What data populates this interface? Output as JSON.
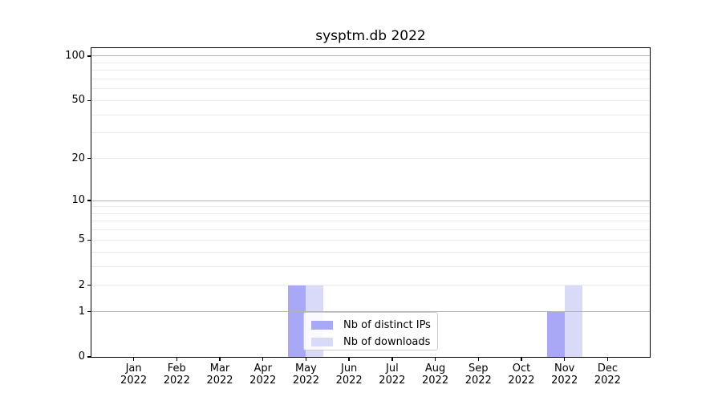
{
  "title": "sysptm.db 2022",
  "colors": {
    "series_distinct_ips": "#a8a8f6",
    "series_downloads": "#d9d9f8",
    "grid_major": "#b4b4b4",
    "grid_minor": "#ebebeb",
    "axis": "#000000",
    "legend_border": "#cccccc"
  },
  "chart_data": {
    "type": "bar",
    "title": "sysptm.db 2022",
    "xlabel": "",
    "ylabel": "",
    "yscale": "log1p",
    "ylim": [
      0,
      113
    ],
    "grid": true,
    "legend_position": "lower center",
    "ytick_values": [
      0,
      1,
      2,
      5,
      10,
      20,
      50,
      100
    ],
    "ytick_labels": [
      "0",
      "1",
      "2",
      "5",
      "10",
      "20",
      "50",
      "100"
    ],
    "major_grid_values": [
      1,
      10,
      100
    ],
    "minor_grid_values": [
      2,
      3,
      4,
      5,
      6,
      7,
      8,
      9,
      20,
      30,
      40,
      50,
      60,
      70,
      80,
      90
    ],
    "categories": [
      {
        "month": "Jan",
        "year": "2022"
      },
      {
        "month": "Feb",
        "year": "2022"
      },
      {
        "month": "Mar",
        "year": "2022"
      },
      {
        "month": "Apr",
        "year": "2022"
      },
      {
        "month": "May",
        "year": "2022"
      },
      {
        "month": "Jun",
        "year": "2022"
      },
      {
        "month": "Jul",
        "year": "2022"
      },
      {
        "month": "Aug",
        "year": "2022"
      },
      {
        "month": "Sep",
        "year": "2022"
      },
      {
        "month": "Oct",
        "year": "2022"
      },
      {
        "month": "Nov",
        "year": "2022"
      },
      {
        "month": "Dec",
        "year": "2022"
      }
    ],
    "series": [
      {
        "name": "Nb of distinct IPs",
        "color": "#a8a8f6",
        "values": [
          0,
          0,
          0,
          0,
          2,
          0,
          0,
          0,
          0,
          0,
          1,
          0
        ]
      },
      {
        "name": "Nb of downloads",
        "color": "#d9d9f8",
        "values": [
          0,
          0,
          0,
          0,
          2,
          0,
          0,
          0,
          0,
          0,
          2,
          0
        ]
      }
    ],
    "legend_entries": [
      "Nb of distinct IPs",
      "Nb of downloads"
    ]
  }
}
